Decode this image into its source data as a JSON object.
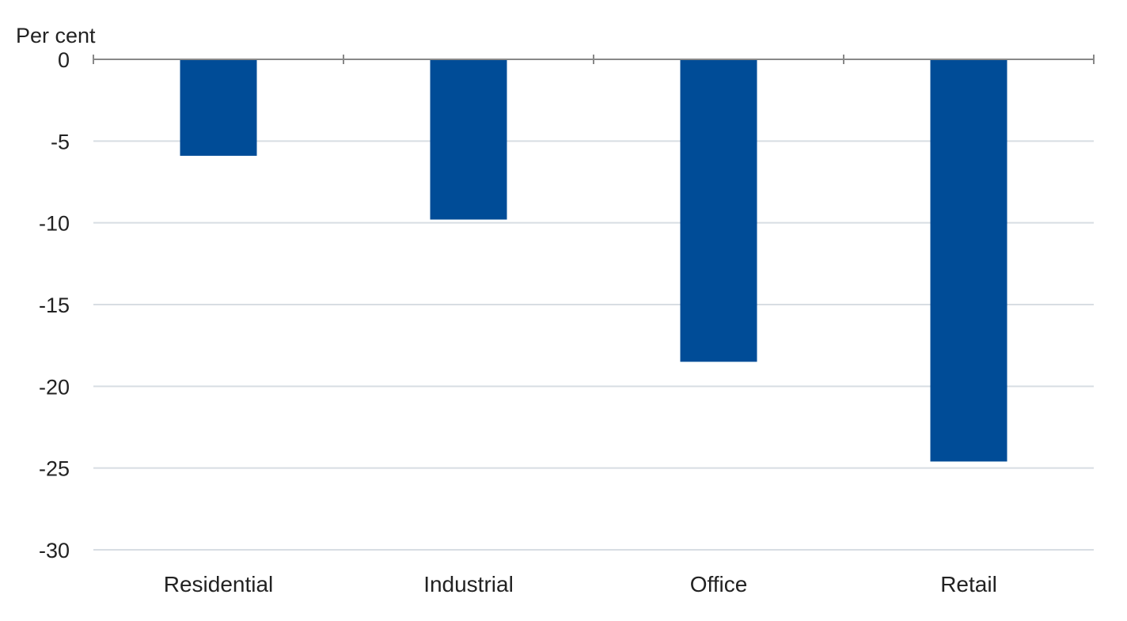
{
  "chart_data": {
    "type": "bar",
    "y_unit_label": "Per cent",
    "categories": [
      "Residential",
      "Industrial",
      "Office",
      "Retail"
    ],
    "values": [
      -5.9,
      -9.8,
      -18.5,
      -24.6
    ],
    "ylim": [
      -30,
      0
    ],
    "y_ticks": [
      0,
      -5,
      -10,
      -15,
      -20,
      -25,
      -30
    ],
    "y_tick_labels": [
      "0",
      "-5",
      "-10",
      "-15",
      "-20",
      "-25",
      "-30"
    ],
    "xlabel": "",
    "ylabel": "",
    "title": "",
    "grid": true,
    "legend": "none",
    "bar_color": "#004c97"
  }
}
